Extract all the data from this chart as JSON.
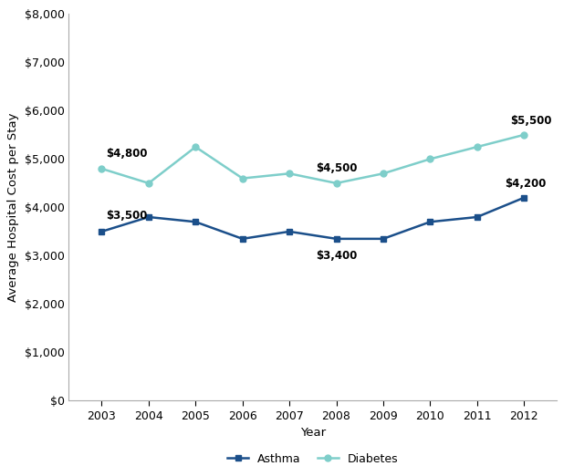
{
  "years": [
    2003,
    2004,
    2005,
    2006,
    2007,
    2008,
    2009,
    2010,
    2011,
    2012
  ],
  "asthma": [
    3500,
    3800,
    3700,
    3350,
    3500,
    3350,
    3350,
    3700,
    3800,
    4200
  ],
  "diabetes": [
    4800,
    4500,
    5250,
    4600,
    4700,
    4500,
    4700,
    5000,
    5250,
    5500
  ],
  "asthma_color": "#1B4F8A",
  "diabetes_color": "#7ECECA",
  "asthma_label": "Asthma",
  "diabetes_label": "Diabetes",
  "xlabel": "Year",
  "ylabel": "Average Hospital Cost per Stay",
  "ylim": [
    0,
    8000
  ],
  "yticks": [
    0,
    1000,
    2000,
    3000,
    4000,
    5000,
    6000,
    7000,
    8000
  ],
  "ann_asthma_2003": "$3,500",
  "ann_asthma_2008": "$3,400",
  "ann_asthma_2012": "$4,200",
  "ann_diabetes_2003": "$4,800",
  "ann_diabetes_2008": "$4,500",
  "ann_diabetes_2012": "$5,500",
  "asthma_marker": "s",
  "diabetes_marker": "o",
  "marker_size": 5,
  "linewidth": 1.8,
  "background_color": "#ffffff",
  "annotation_fontsize": 8.5,
  "axis_fontsize": 9.5,
  "tick_fontsize": 9,
  "legend_fontsize": 9
}
